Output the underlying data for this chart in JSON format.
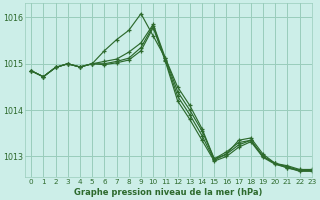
{
  "title": "Graphe pression niveau de la mer (hPa)",
  "bg_color": "#cceee8",
  "grid_color": "#99ccbb",
  "line_color": "#2d6a2d",
  "marker_color": "#2d6a2d",
  "xlim": [
    -0.5,
    23
  ],
  "ylim": [
    1012.55,
    1016.3
  ],
  "yticks": [
    1013,
    1014,
    1015,
    1016
  ],
  "xticks": [
    0,
    1,
    2,
    3,
    4,
    5,
    6,
    7,
    8,
    9,
    10,
    11,
    12,
    13,
    14,
    15,
    16,
    17,
    18,
    19,
    20,
    21,
    22,
    23
  ],
  "series": [
    [
      1014.85,
      1014.72,
      1014.92,
      1015.0,
      1014.93,
      1015.0,
      1015.28,
      1015.52,
      1015.72,
      1016.08,
      1015.6,
      1015.12,
      1014.5,
      1014.1,
      1013.6,
      1012.95,
      1013.05,
      1013.35,
      1013.4,
      1013.05,
      1012.85,
      1012.8,
      1012.72,
      1012.72
    ],
    [
      1014.85,
      1014.72,
      1014.92,
      1015.0,
      1014.93,
      1015.0,
      1015.05,
      1015.1,
      1015.25,
      1015.45,
      1015.85,
      1015.12,
      1014.4,
      1014.0,
      1013.55,
      1012.95,
      1013.1,
      1013.3,
      1013.35,
      1013.0,
      1012.85,
      1012.75,
      1012.7,
      1012.7
    ],
    [
      1014.85,
      1014.72,
      1014.92,
      1015.0,
      1014.93,
      1015.0,
      1015.0,
      1015.05,
      1015.12,
      1015.35,
      1015.82,
      1015.08,
      1014.3,
      1013.9,
      1013.45,
      1012.92,
      1013.05,
      1013.25,
      1013.35,
      1013.0,
      1012.85,
      1012.78,
      1012.7,
      1012.7
    ],
    [
      1014.85,
      1014.72,
      1014.92,
      1015.0,
      1014.93,
      1015.0,
      1014.98,
      1015.02,
      1015.08,
      1015.28,
      1015.78,
      1015.05,
      1014.2,
      1013.8,
      1013.35,
      1012.9,
      1013.0,
      1013.2,
      1013.32,
      1012.98,
      1012.83,
      1012.76,
      1012.68,
      1012.68
    ]
  ]
}
